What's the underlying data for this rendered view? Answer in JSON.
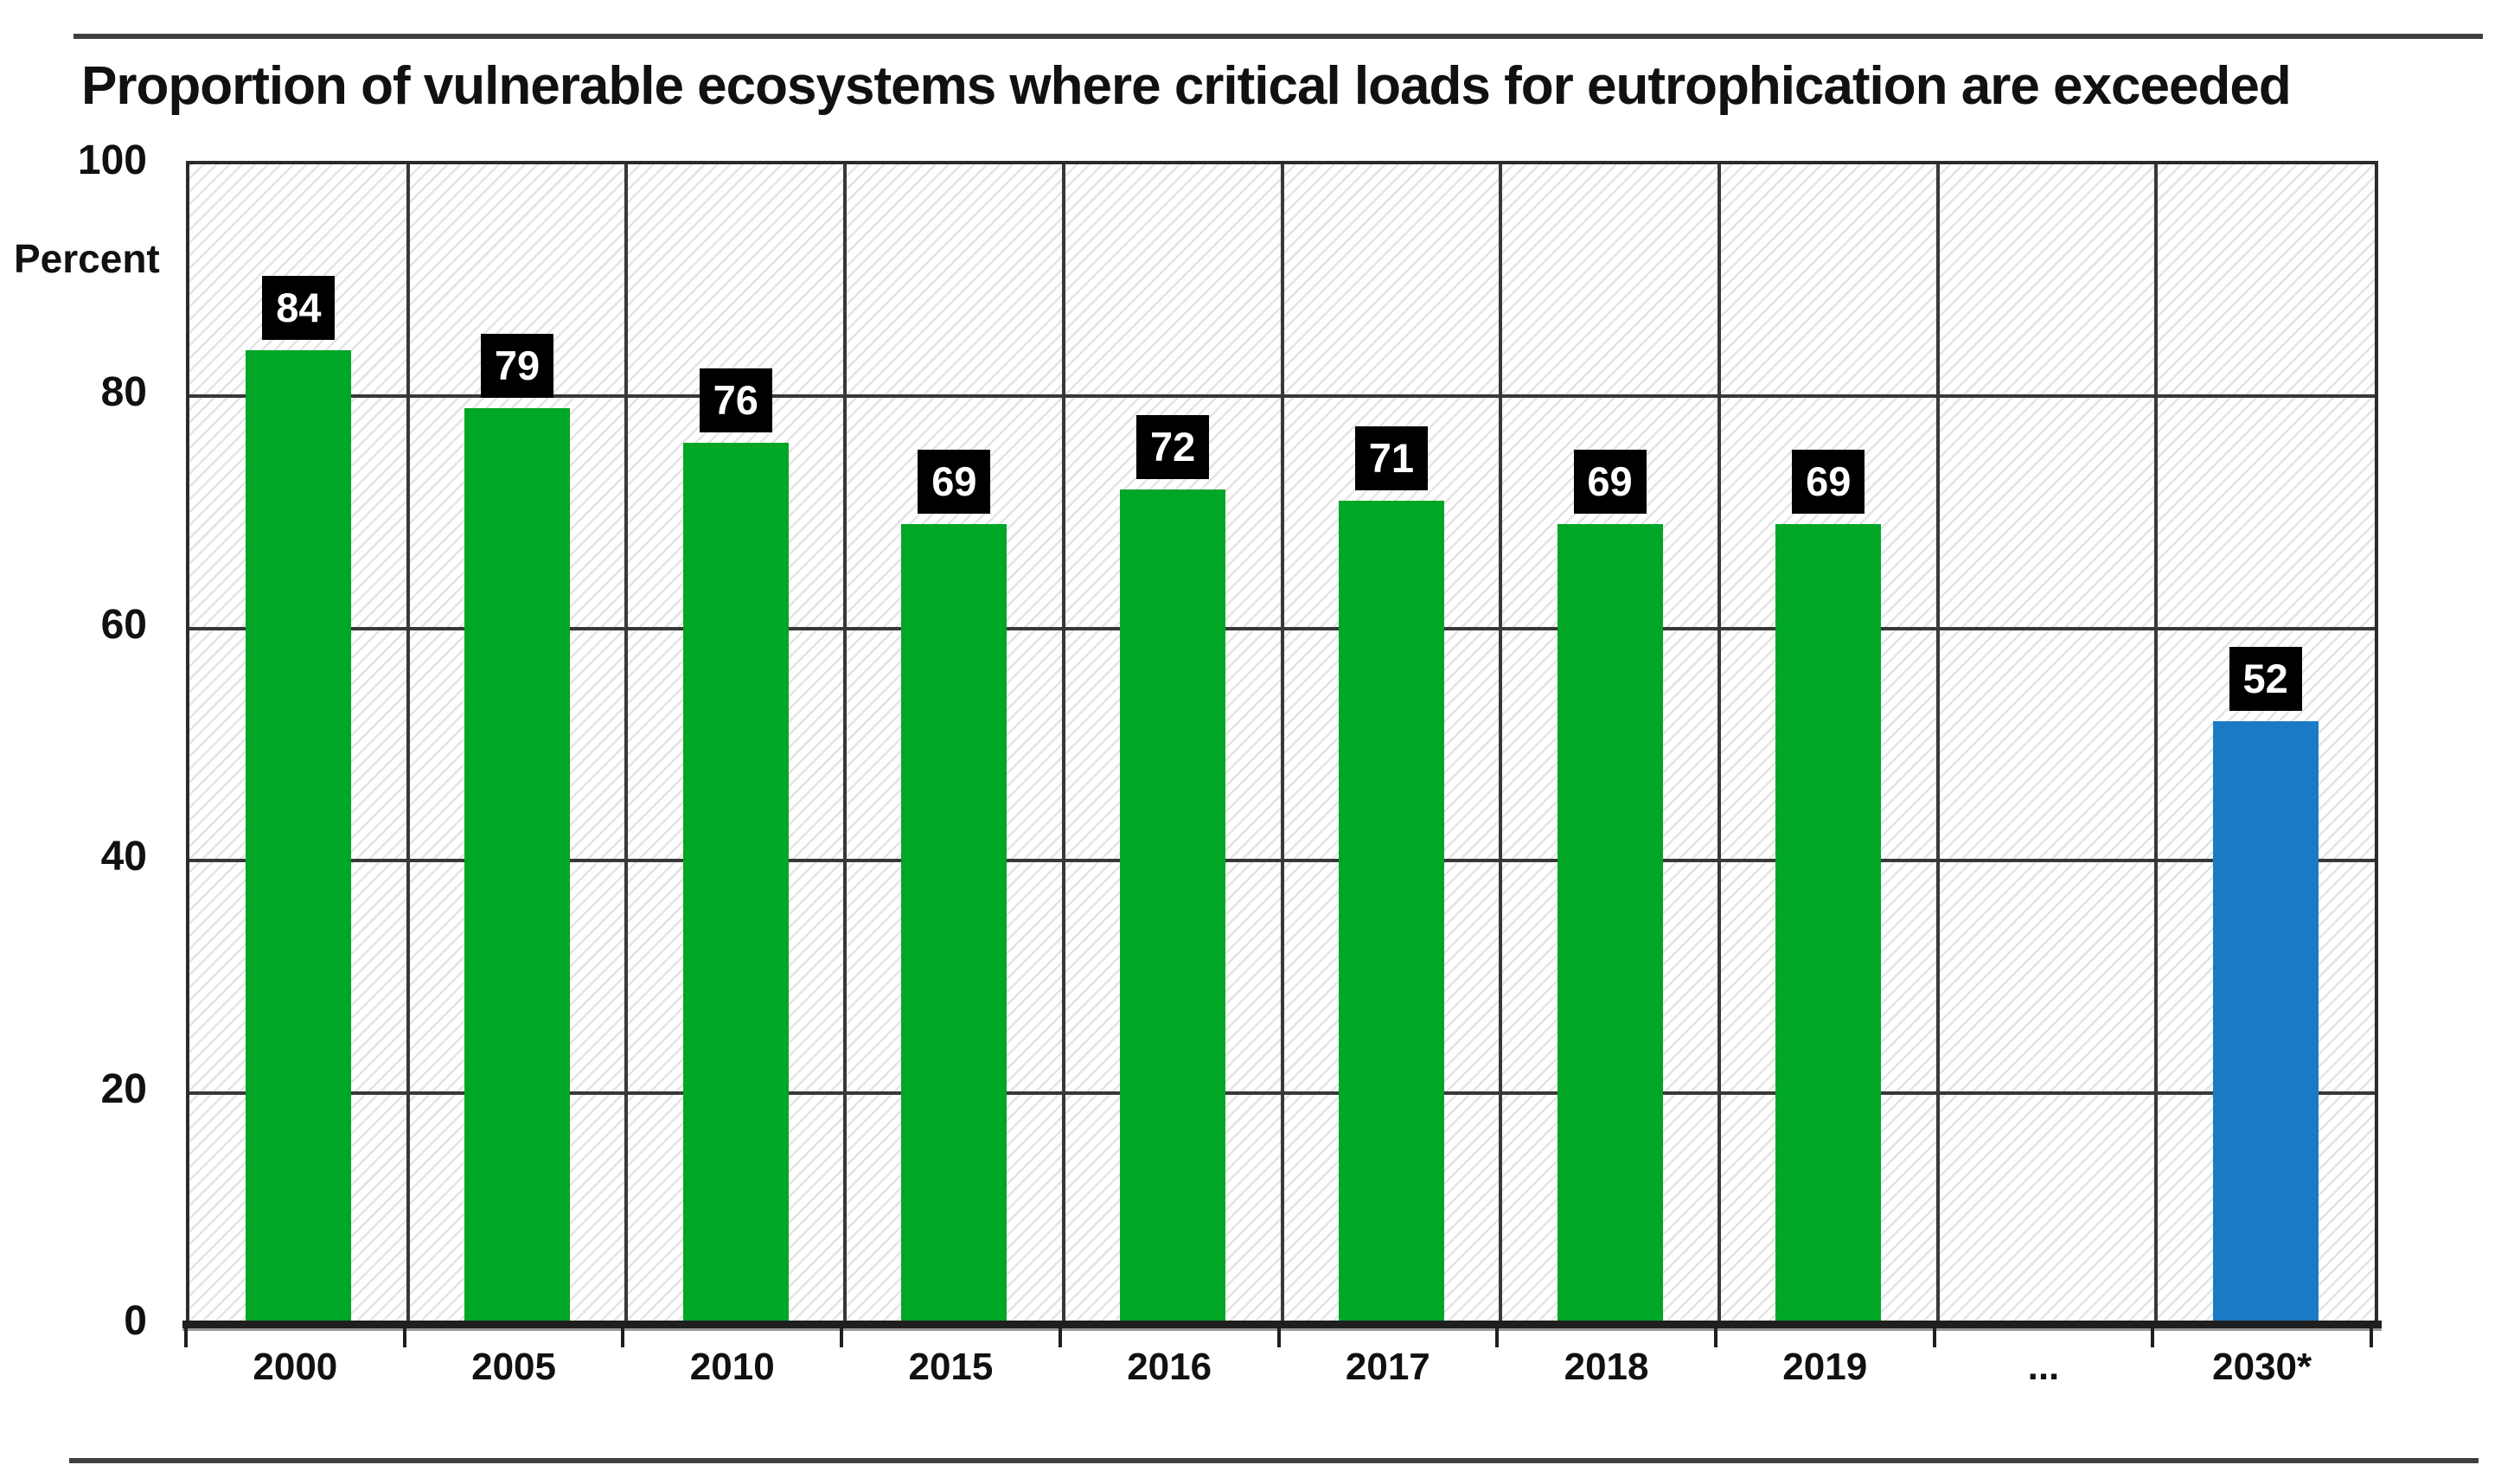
{
  "chart_data": {
    "type": "bar",
    "title": "Proportion of vulnerable ecosystems where critical loads for eutrophication are exceeded",
    "ylabel": "Percent",
    "xlabel": "",
    "ylim": [
      0,
      100
    ],
    "yticks": [
      100,
      80,
      60,
      40,
      20,
      0
    ],
    "grid": true,
    "legend": false,
    "plot_background": "white with light gray diagonal hatch",
    "value_label_style": "white bold number in black box above each bar",
    "categories": [
      "2000",
      "2005",
      "2010",
      "2015",
      "2016",
      "2017",
      "2018",
      "2019",
      "...",
      "2030*"
    ],
    "values": [
      84,
      79,
      76,
      69,
      72,
      71,
      69,
      69,
      null,
      52
    ],
    "bar_colors": [
      "#00a626",
      "#00a626",
      "#00a626",
      "#00a626",
      "#00a626",
      "#00a626",
      "#00a626",
      "#00a626",
      null,
      "#1b7ac5"
    ],
    "colors": {
      "bar_actual": "#00a626",
      "bar_projection": "#1b7ac5",
      "value_label_bg": "#000000",
      "value_label_text": "#ffffff",
      "gridline": "#383838",
      "axis": "#1f1f1f",
      "rule": "#3f3f3f",
      "text": "#111111"
    }
  }
}
